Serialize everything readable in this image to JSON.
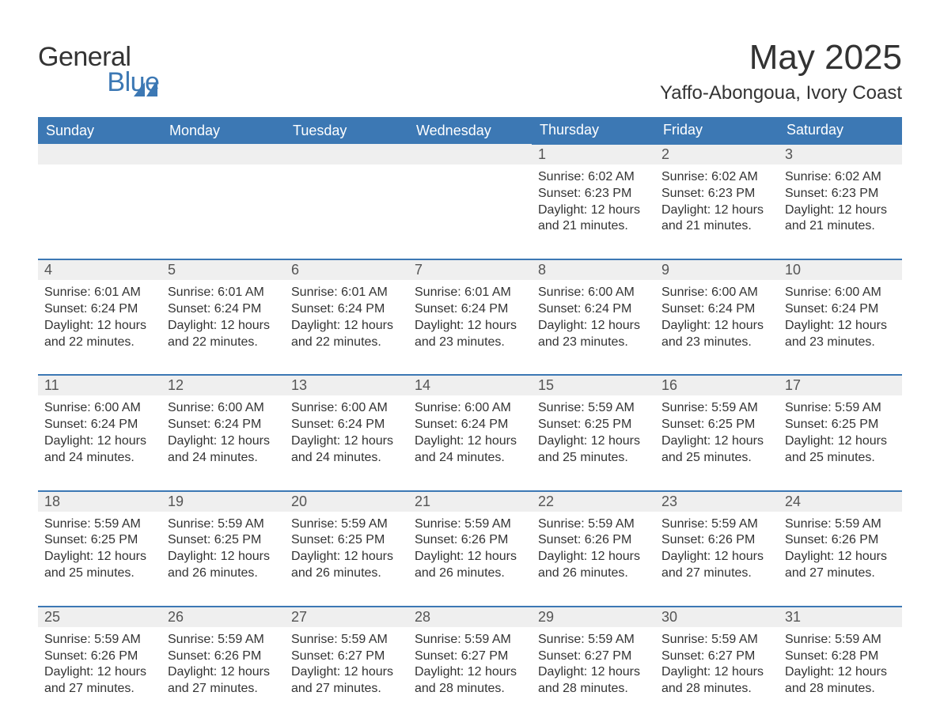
{
  "logo": {
    "line1": "General",
    "line2": "Blue",
    "accent_color": "#3c78b4"
  },
  "title": "May 2025",
  "location": "Yaffo-Abongoua, Ivory Coast",
  "colors": {
    "header_bg": "#3c78b4",
    "header_text": "#ffffff",
    "daybar_bg": "#efefef",
    "body_text": "#333333",
    "border": "#3c78b4",
    "background": "#ffffff"
  },
  "fonts": {
    "title_size": 44,
    "location_size": 24,
    "header_size": 18,
    "day_number_size": 18,
    "body_size": 16,
    "family": "Arial"
  },
  "weekdays": [
    "Sunday",
    "Monday",
    "Tuesday",
    "Wednesday",
    "Thursday",
    "Friday",
    "Saturday"
  ],
  "weeks": [
    [
      {
        "empty": true
      },
      {
        "empty": true
      },
      {
        "empty": true
      },
      {
        "empty": true
      },
      {
        "day": 1,
        "sunrise": "6:02 AM",
        "sunset": "6:23 PM",
        "daylight": "12 hours and 21 minutes."
      },
      {
        "day": 2,
        "sunrise": "6:02 AM",
        "sunset": "6:23 PM",
        "daylight": "12 hours and 21 minutes."
      },
      {
        "day": 3,
        "sunrise": "6:02 AM",
        "sunset": "6:23 PM",
        "daylight": "12 hours and 21 minutes."
      }
    ],
    [
      {
        "day": 4,
        "sunrise": "6:01 AM",
        "sunset": "6:24 PM",
        "daylight": "12 hours and 22 minutes."
      },
      {
        "day": 5,
        "sunrise": "6:01 AM",
        "sunset": "6:24 PM",
        "daylight": "12 hours and 22 minutes."
      },
      {
        "day": 6,
        "sunrise": "6:01 AM",
        "sunset": "6:24 PM",
        "daylight": "12 hours and 22 minutes."
      },
      {
        "day": 7,
        "sunrise": "6:01 AM",
        "sunset": "6:24 PM",
        "daylight": "12 hours and 23 minutes."
      },
      {
        "day": 8,
        "sunrise": "6:00 AM",
        "sunset": "6:24 PM",
        "daylight": "12 hours and 23 minutes."
      },
      {
        "day": 9,
        "sunrise": "6:00 AM",
        "sunset": "6:24 PM",
        "daylight": "12 hours and 23 minutes."
      },
      {
        "day": 10,
        "sunrise": "6:00 AM",
        "sunset": "6:24 PM",
        "daylight": "12 hours and 23 minutes."
      }
    ],
    [
      {
        "day": 11,
        "sunrise": "6:00 AM",
        "sunset": "6:24 PM",
        "daylight": "12 hours and 24 minutes."
      },
      {
        "day": 12,
        "sunrise": "6:00 AM",
        "sunset": "6:24 PM",
        "daylight": "12 hours and 24 minutes."
      },
      {
        "day": 13,
        "sunrise": "6:00 AM",
        "sunset": "6:24 PM",
        "daylight": "12 hours and 24 minutes."
      },
      {
        "day": 14,
        "sunrise": "6:00 AM",
        "sunset": "6:24 PM",
        "daylight": "12 hours and 24 minutes."
      },
      {
        "day": 15,
        "sunrise": "5:59 AM",
        "sunset": "6:25 PM",
        "daylight": "12 hours and 25 minutes."
      },
      {
        "day": 16,
        "sunrise": "5:59 AM",
        "sunset": "6:25 PM",
        "daylight": "12 hours and 25 minutes."
      },
      {
        "day": 17,
        "sunrise": "5:59 AM",
        "sunset": "6:25 PM",
        "daylight": "12 hours and 25 minutes."
      }
    ],
    [
      {
        "day": 18,
        "sunrise": "5:59 AM",
        "sunset": "6:25 PM",
        "daylight": "12 hours and 25 minutes."
      },
      {
        "day": 19,
        "sunrise": "5:59 AM",
        "sunset": "6:25 PM",
        "daylight": "12 hours and 26 minutes."
      },
      {
        "day": 20,
        "sunrise": "5:59 AM",
        "sunset": "6:25 PM",
        "daylight": "12 hours and 26 minutes."
      },
      {
        "day": 21,
        "sunrise": "5:59 AM",
        "sunset": "6:26 PM",
        "daylight": "12 hours and 26 minutes."
      },
      {
        "day": 22,
        "sunrise": "5:59 AM",
        "sunset": "6:26 PM",
        "daylight": "12 hours and 26 minutes."
      },
      {
        "day": 23,
        "sunrise": "5:59 AM",
        "sunset": "6:26 PM",
        "daylight": "12 hours and 27 minutes."
      },
      {
        "day": 24,
        "sunrise": "5:59 AM",
        "sunset": "6:26 PM",
        "daylight": "12 hours and 27 minutes."
      }
    ],
    [
      {
        "day": 25,
        "sunrise": "5:59 AM",
        "sunset": "6:26 PM",
        "daylight": "12 hours and 27 minutes."
      },
      {
        "day": 26,
        "sunrise": "5:59 AM",
        "sunset": "6:26 PM",
        "daylight": "12 hours and 27 minutes."
      },
      {
        "day": 27,
        "sunrise": "5:59 AM",
        "sunset": "6:27 PM",
        "daylight": "12 hours and 27 minutes."
      },
      {
        "day": 28,
        "sunrise": "5:59 AM",
        "sunset": "6:27 PM",
        "daylight": "12 hours and 28 minutes."
      },
      {
        "day": 29,
        "sunrise": "5:59 AM",
        "sunset": "6:27 PM",
        "daylight": "12 hours and 28 minutes."
      },
      {
        "day": 30,
        "sunrise": "5:59 AM",
        "sunset": "6:27 PM",
        "daylight": "12 hours and 28 minutes."
      },
      {
        "day": 31,
        "sunrise": "5:59 AM",
        "sunset": "6:28 PM",
        "daylight": "12 hours and 28 minutes."
      }
    ]
  ],
  "labels": {
    "sunrise": "Sunrise:",
    "sunset": "Sunset:",
    "daylight": "Daylight:"
  }
}
